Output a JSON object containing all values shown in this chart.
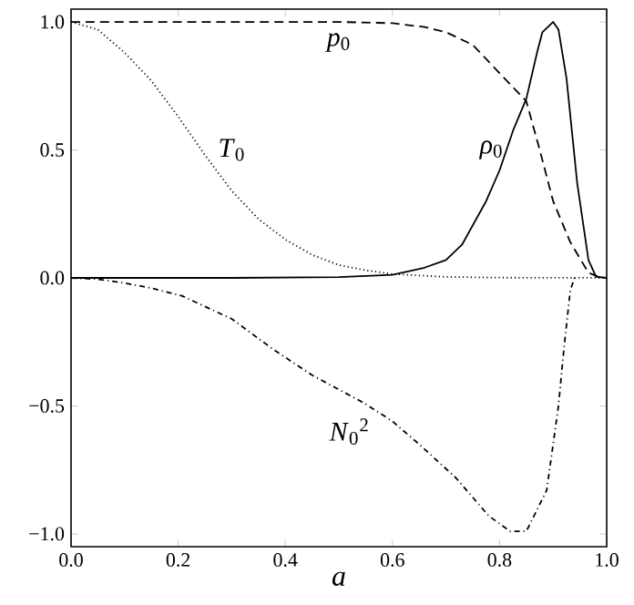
{
  "chart_data": {
    "type": "line",
    "xlabel": "a",
    "xlim": [
      0,
      1
    ],
    "ylim": [
      -1.05,
      1.05
    ],
    "xticks": [
      {
        "value": 0,
        "label": "0.0"
      },
      {
        "value": 0.2,
        "label": "0.2"
      },
      {
        "value": 0.4,
        "label": "0.4"
      },
      {
        "value": 0.6,
        "label": "0.6"
      },
      {
        "value": 0.8,
        "label": "0.8"
      },
      {
        "value": 1,
        "label": "1.0"
      }
    ],
    "yticks": [
      {
        "value": -1,
        "label": "−1.0"
      },
      {
        "value": -0.5,
        "label": "−0.5"
      },
      {
        "value": 0,
        "label": "0.0"
      },
      {
        "value": 0.5,
        "label": "0.5"
      },
      {
        "value": 1,
        "label": "1.0"
      }
    ],
    "grid": false,
    "legend": false,
    "series": [
      {
        "name": "*p*$_{0}$",
        "color": "#000000",
        "line_style": "dashed",
        "x": [
          0,
          0.3,
          0.5,
          0.6,
          0.66,
          0.7,
          0.75,
          0.8,
          0.85,
          0.875,
          0.9,
          0.932,
          0.966,
          0.985
        ],
        "values": [
          1,
          1,
          1,
          0.995,
          0.98,
          0.96,
          0.91,
          0.8,
          0.69,
          0.5,
          0.3,
          0.14,
          0.02,
          0.004
        ]
      },
      {
        "name": "*ρ*$_{0}$",
        "color": "#000000",
        "line_style": "solid",
        "x": [
          0,
          0.3,
          0.5,
          0.6,
          0.66,
          0.7,
          0.73,
          0.775,
          0.8,
          0.826,
          0.85,
          0.87,
          0.88,
          0.9,
          0.91,
          0.925,
          0.945,
          0.966,
          0.98,
          1.0
        ],
        "values": [
          0,
          0,
          0.003,
          0.012,
          0.04,
          0.07,
          0.13,
          0.3,
          0.42,
          0.58,
          0.7,
          0.88,
          0.96,
          1.0,
          0.97,
          0.78,
          0.37,
          0.07,
          0.005,
          0
        ]
      },
      {
        "name": "*T*$_{0}$",
        "color": "#000000",
        "line_style": "dotted",
        "x": [
          0,
          0.05,
          0.1,
          0.15,
          0.2,
          0.25,
          0.3,
          0.35,
          0.4,
          0.45,
          0.5,
          0.55,
          0.6,
          0.7,
          0.8,
          1.0
        ],
        "values": [
          1,
          0.97,
          0.88,
          0.77,
          0.63,
          0.48,
          0.34,
          0.23,
          0.15,
          0.09,
          0.05,
          0.03,
          0.015,
          0.004,
          0.001,
          0
        ]
      },
      {
        "name": "*N*$_{0}$$^{2}$",
        "color": "#000000",
        "line_style": "dashdot",
        "x": [
          0,
          0.05,
          0.1,
          0.15,
          0.207,
          0.3,
          0.378,
          0.45,
          0.548,
          0.6,
          0.65,
          0.718,
          0.78,
          0.82,
          0.85,
          0.888,
          0.91,
          0.92,
          0.932,
          0.94
        ],
        "values": [
          0,
          -0.005,
          -0.02,
          -0.04,
          -0.07,
          -0.16,
          -0.28,
          -0.38,
          -0.49,
          -0.56,
          -0.65,
          -0.78,
          -0.93,
          -0.99,
          -0.99,
          -0.83,
          -0.5,
          -0.28,
          -0.05,
          0
        ]
      }
    ]
  }
}
